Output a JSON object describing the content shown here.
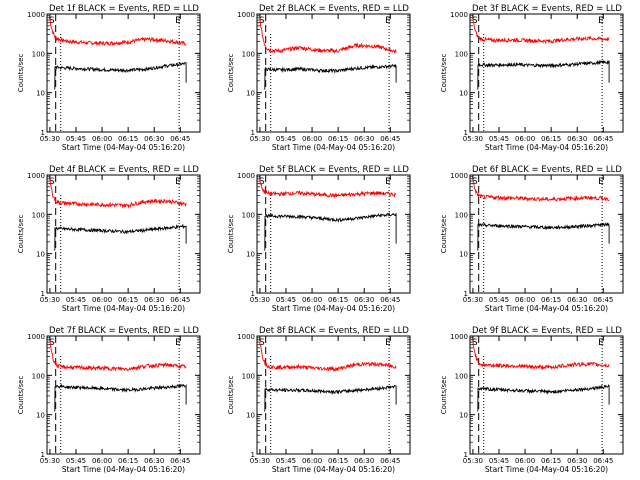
{
  "chart_data": [
    {
      "type": "line",
      "title": "Det 1f BLACK = Events, RED = LLD",
      "xlabel": "Start Time (04-May-04 05:16:20)",
      "ylabel": "Counts/sec",
      "yscale": "log",
      "ylim": [
        1,
        1000
      ],
      "yticks": [
        "1",
        "10",
        "100",
        "1000"
      ],
      "xticks": [
        "05:30",
        "05:45",
        "06:00",
        "06:15",
        "06:30",
        "06:45"
      ],
      "markers": [
        "S",
        "E"
      ],
      "series": [
        {
          "color": "#ff0000",
          "start": 780,
          "level": [
            245,
            200,
            185,
            180,
            195,
            230,
            210,
            175
          ]
        },
        {
          "color": "#000000",
          "start": 60,
          "level": [
            45,
            42,
            40,
            38,
            37,
            40,
            48,
            55
          ]
        }
      ]
    },
    {
      "type": "line",
      "title": "Det 2f BLACK = Events, RED = LLD",
      "xlabel": "Start Time (04-May-04 05:16:20)",
      "ylabel": "Counts/sec",
      "yscale": "log",
      "ylim": [
        1,
        1000
      ],
      "yticks": [
        "1",
        "10",
        "100",
        "1000"
      ],
      "xticks": [
        "05:30",
        "05:45",
        "06:00",
        "06:15",
        "06:30",
        "06:45"
      ],
      "markers": [
        "S",
        "E"
      ],
      "series": [
        {
          "color": "#ff0000",
          "start": 780,
          "level": [
            125,
            115,
            140,
            120,
            115,
            160,
            150,
            110
          ]
        },
        {
          "color": "#000000",
          "start": 45,
          "level": [
            40,
            38,
            40,
            37,
            36,
            42,
            45,
            48
          ]
        }
      ]
    },
    {
      "type": "line",
      "title": "Det 3f BLACK = Events, RED = LLD",
      "xlabel": "Start Time (04-May-04 05:16:20)",
      "ylabel": "Counts/sec",
      "yscale": "log",
      "ylim": [
        1,
        1000
      ],
      "yticks": [
        "1",
        "10",
        "100",
        "1000"
      ],
      "xticks": [
        "05:30",
        "05:45",
        "06:00",
        "06:15",
        "06:30",
        "06:45"
      ],
      "markers": [
        "S",
        "E"
      ],
      "series": [
        {
          "color": "#ff0000",
          "start": 780,
          "level": [
            235,
            215,
            220,
            210,
            205,
            230,
            240,
            230
          ]
        },
        {
          "color": "#000000",
          "start": 60,
          "level": [
            52,
            50,
            52,
            50,
            49,
            52,
            56,
            60
          ]
        }
      ]
    },
    {
      "type": "line",
      "title": "Det 4f BLACK = Events, RED = LLD",
      "xlabel": "Start Time (04-May-04 05:16:20)",
      "ylabel": "Counts/sec",
      "yscale": "log",
      "ylim": [
        1,
        1000
      ],
      "yticks": [
        "1",
        "10",
        "100",
        "1000"
      ],
      "xticks": [
        "05:30",
        "05:45",
        "06:00",
        "06:15",
        "06:30",
        "06:45"
      ],
      "markers": [
        "S",
        "E"
      ],
      "series": [
        {
          "color": "#ff0000",
          "start": 780,
          "level": [
            200,
            190,
            180,
            175,
            170,
            215,
            220,
            180
          ]
        },
        {
          "color": "#000000",
          "start": 45,
          "level": [
            45,
            42,
            40,
            38,
            36,
            40,
            45,
            50
          ]
        }
      ]
    },
    {
      "type": "line",
      "title": "Det 5f BLACK = Events, RED = LLD",
      "xlabel": "Start Time (04-May-04 05:16:20)",
      "ylabel": "Counts/sec",
      "yscale": "log",
      "ylim": [
        1,
        1000
      ],
      "yticks": [
        "1",
        "10",
        "100",
        "1000"
      ],
      "xticks": [
        "05:30",
        "05:45",
        "06:00",
        "06:15",
        "06:30",
        "06:45"
      ],
      "markers": [
        "S",
        "E"
      ],
      "series": [
        {
          "color": "#ff0000",
          "start": 780,
          "level": [
            345,
            330,
            350,
            320,
            300,
            330,
            350,
            320
          ]
        },
        {
          "color": "#000000",
          "start": 90,
          "level": [
            92,
            90,
            88,
            80,
            72,
            80,
            92,
            100
          ]
        }
      ]
    },
    {
      "type": "line",
      "title": "Det 6f BLACK = Events, RED = LLD",
      "xlabel": "Start Time (04-May-04 05:16:20)",
      "ylabel": "Counts/sec",
      "yscale": "log",
      "ylim": [
        1,
        1000
      ],
      "yticks": [
        "1",
        "10",
        "100",
        "1000"
      ],
      "xticks": [
        "05:30",
        "05:45",
        "06:00",
        "06:15",
        "06:30",
        "06:45"
      ],
      "markers": [
        "S",
        "E"
      ],
      "series": [
        {
          "color": "#ff0000",
          "start": 780,
          "level": [
            285,
            270,
            260,
            250,
            240,
            255,
            265,
            250
          ]
        },
        {
          "color": "#000000",
          "start": 50,
          "level": [
            54,
            52,
            50,
            48,
            46,
            48,
            52,
            55
          ]
        }
      ]
    },
    {
      "type": "line",
      "title": "Det 7f BLACK = Events, RED = LLD",
      "xlabel": "Start Time (04-May-04 05:16:20)",
      "ylabel": "Counts/sec",
      "yscale": "log",
      "ylim": [
        1,
        1000
      ],
      "yticks": [
        "1",
        "10",
        "100",
        "1000"
      ],
      "xticks": [
        "05:30",
        "05:45",
        "06:00",
        "06:15",
        "06:30",
        "06:45"
      ],
      "markers": [
        "S",
        "E"
      ],
      "series": [
        {
          "color": "#ff0000",
          "start": 780,
          "level": [
            170,
            160,
            155,
            150,
            145,
            175,
            185,
            165
          ]
        },
        {
          "color": "#000000",
          "start": 55,
          "level": [
            55,
            50,
            48,
            45,
            42,
            46,
            50,
            55
          ]
        }
      ]
    },
    {
      "type": "line",
      "title": "Det 8f BLACK = Events, RED = LLD",
      "xlabel": "Start Time (04-May-04 05:16:20)",
      "ylabel": "Counts/sec",
      "yscale": "log",
      "ylim": [
        1,
        1000
      ],
      "yticks": [
        "1",
        "10",
        "100",
        "1000"
      ],
      "xticks": [
        "05:30",
        "05:45",
        "06:00",
        "06:15",
        "06:30",
        "06:45"
      ],
      "markers": [
        "S",
        "E"
      ],
      "series": [
        {
          "color": "#ff0000",
          "start": 780,
          "level": [
            170,
            160,
            165,
            150,
            145,
            190,
            195,
            165
          ]
        },
        {
          "color": "#000000",
          "start": 45,
          "level": [
            45,
            42,
            42,
            40,
            38,
            42,
            46,
            52
          ]
        }
      ]
    },
    {
      "type": "line",
      "title": "Det 9f BLACK = Events, RED = LLD",
      "xlabel": "Start Time (04-May-04 05:16:20)",
      "ylabel": "Counts/sec",
      "yscale": "log",
      "ylim": [
        1,
        1000
      ],
      "yticks": [
        "1",
        "10",
        "100",
        "1000"
      ],
      "xticks": [
        "05:30",
        "05:45",
        "06:00",
        "06:15",
        "06:30",
        "06:45"
      ],
      "markers": [
        "S",
        "E"
      ],
      "series": [
        {
          "color": "#ff0000",
          "start": 780,
          "level": [
            190,
            180,
            175,
            165,
            160,
            185,
            195,
            175
          ]
        },
        {
          "color": "#000000",
          "start": 45,
          "level": [
            46,
            44,
            42,
            40,
            38,
            42,
            46,
            52
          ]
        }
      ]
    }
  ]
}
